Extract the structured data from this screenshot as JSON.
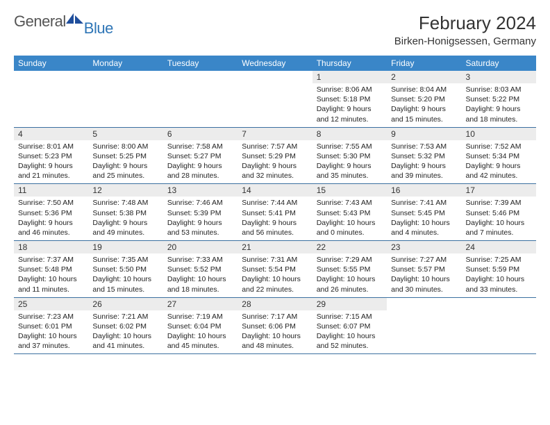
{
  "logo": {
    "general": "General",
    "blue": "Blue"
  },
  "title": {
    "month_year": "February 2024",
    "location": "Birken-Honigsessen, Germany"
  },
  "colors": {
    "header_bar": "#3a86c8",
    "header_text": "#ffffff",
    "daynum_bg": "#ececec",
    "week_divider": "#3a6fa0",
    "logo_general": "#555555",
    "logo_blue": "#2e75b6",
    "text": "#222222",
    "background": "#ffffff"
  },
  "day_names": [
    "Sunday",
    "Monday",
    "Tuesday",
    "Wednesday",
    "Thursday",
    "Friday",
    "Saturday"
  ],
  "weeks": [
    [
      {
        "day": "",
        "sunrise": "",
        "sunset": "",
        "daylight1": "",
        "daylight2": ""
      },
      {
        "day": "",
        "sunrise": "",
        "sunset": "",
        "daylight1": "",
        "daylight2": ""
      },
      {
        "day": "",
        "sunrise": "",
        "sunset": "",
        "daylight1": "",
        "daylight2": ""
      },
      {
        "day": "",
        "sunrise": "",
        "sunset": "",
        "daylight1": "",
        "daylight2": ""
      },
      {
        "day": "1",
        "sunrise": "Sunrise: 8:06 AM",
        "sunset": "Sunset: 5:18 PM",
        "daylight1": "Daylight: 9 hours",
        "daylight2": "and 12 minutes."
      },
      {
        "day": "2",
        "sunrise": "Sunrise: 8:04 AM",
        "sunset": "Sunset: 5:20 PM",
        "daylight1": "Daylight: 9 hours",
        "daylight2": "and 15 minutes."
      },
      {
        "day": "3",
        "sunrise": "Sunrise: 8:03 AM",
        "sunset": "Sunset: 5:22 PM",
        "daylight1": "Daylight: 9 hours",
        "daylight2": "and 18 minutes."
      }
    ],
    [
      {
        "day": "4",
        "sunrise": "Sunrise: 8:01 AM",
        "sunset": "Sunset: 5:23 PM",
        "daylight1": "Daylight: 9 hours",
        "daylight2": "and 21 minutes."
      },
      {
        "day": "5",
        "sunrise": "Sunrise: 8:00 AM",
        "sunset": "Sunset: 5:25 PM",
        "daylight1": "Daylight: 9 hours",
        "daylight2": "and 25 minutes."
      },
      {
        "day": "6",
        "sunrise": "Sunrise: 7:58 AM",
        "sunset": "Sunset: 5:27 PM",
        "daylight1": "Daylight: 9 hours",
        "daylight2": "and 28 minutes."
      },
      {
        "day": "7",
        "sunrise": "Sunrise: 7:57 AM",
        "sunset": "Sunset: 5:29 PM",
        "daylight1": "Daylight: 9 hours",
        "daylight2": "and 32 minutes."
      },
      {
        "day": "8",
        "sunrise": "Sunrise: 7:55 AM",
        "sunset": "Sunset: 5:30 PM",
        "daylight1": "Daylight: 9 hours",
        "daylight2": "and 35 minutes."
      },
      {
        "day": "9",
        "sunrise": "Sunrise: 7:53 AM",
        "sunset": "Sunset: 5:32 PM",
        "daylight1": "Daylight: 9 hours",
        "daylight2": "and 39 minutes."
      },
      {
        "day": "10",
        "sunrise": "Sunrise: 7:52 AM",
        "sunset": "Sunset: 5:34 PM",
        "daylight1": "Daylight: 9 hours",
        "daylight2": "and 42 minutes."
      }
    ],
    [
      {
        "day": "11",
        "sunrise": "Sunrise: 7:50 AM",
        "sunset": "Sunset: 5:36 PM",
        "daylight1": "Daylight: 9 hours",
        "daylight2": "and 46 minutes."
      },
      {
        "day": "12",
        "sunrise": "Sunrise: 7:48 AM",
        "sunset": "Sunset: 5:38 PM",
        "daylight1": "Daylight: 9 hours",
        "daylight2": "and 49 minutes."
      },
      {
        "day": "13",
        "sunrise": "Sunrise: 7:46 AM",
        "sunset": "Sunset: 5:39 PM",
        "daylight1": "Daylight: 9 hours",
        "daylight2": "and 53 minutes."
      },
      {
        "day": "14",
        "sunrise": "Sunrise: 7:44 AM",
        "sunset": "Sunset: 5:41 PM",
        "daylight1": "Daylight: 9 hours",
        "daylight2": "and 56 minutes."
      },
      {
        "day": "15",
        "sunrise": "Sunrise: 7:43 AM",
        "sunset": "Sunset: 5:43 PM",
        "daylight1": "Daylight: 10 hours",
        "daylight2": "and 0 minutes."
      },
      {
        "day": "16",
        "sunrise": "Sunrise: 7:41 AM",
        "sunset": "Sunset: 5:45 PM",
        "daylight1": "Daylight: 10 hours",
        "daylight2": "and 4 minutes."
      },
      {
        "day": "17",
        "sunrise": "Sunrise: 7:39 AM",
        "sunset": "Sunset: 5:46 PM",
        "daylight1": "Daylight: 10 hours",
        "daylight2": "and 7 minutes."
      }
    ],
    [
      {
        "day": "18",
        "sunrise": "Sunrise: 7:37 AM",
        "sunset": "Sunset: 5:48 PM",
        "daylight1": "Daylight: 10 hours",
        "daylight2": "and 11 minutes."
      },
      {
        "day": "19",
        "sunrise": "Sunrise: 7:35 AM",
        "sunset": "Sunset: 5:50 PM",
        "daylight1": "Daylight: 10 hours",
        "daylight2": "and 15 minutes."
      },
      {
        "day": "20",
        "sunrise": "Sunrise: 7:33 AM",
        "sunset": "Sunset: 5:52 PM",
        "daylight1": "Daylight: 10 hours",
        "daylight2": "and 18 minutes."
      },
      {
        "day": "21",
        "sunrise": "Sunrise: 7:31 AM",
        "sunset": "Sunset: 5:54 PM",
        "daylight1": "Daylight: 10 hours",
        "daylight2": "and 22 minutes."
      },
      {
        "day": "22",
        "sunrise": "Sunrise: 7:29 AM",
        "sunset": "Sunset: 5:55 PM",
        "daylight1": "Daylight: 10 hours",
        "daylight2": "and 26 minutes."
      },
      {
        "day": "23",
        "sunrise": "Sunrise: 7:27 AM",
        "sunset": "Sunset: 5:57 PM",
        "daylight1": "Daylight: 10 hours",
        "daylight2": "and 30 minutes."
      },
      {
        "day": "24",
        "sunrise": "Sunrise: 7:25 AM",
        "sunset": "Sunset: 5:59 PM",
        "daylight1": "Daylight: 10 hours",
        "daylight2": "and 33 minutes."
      }
    ],
    [
      {
        "day": "25",
        "sunrise": "Sunrise: 7:23 AM",
        "sunset": "Sunset: 6:01 PM",
        "daylight1": "Daylight: 10 hours",
        "daylight2": "and 37 minutes."
      },
      {
        "day": "26",
        "sunrise": "Sunrise: 7:21 AM",
        "sunset": "Sunset: 6:02 PM",
        "daylight1": "Daylight: 10 hours",
        "daylight2": "and 41 minutes."
      },
      {
        "day": "27",
        "sunrise": "Sunrise: 7:19 AM",
        "sunset": "Sunset: 6:04 PM",
        "daylight1": "Daylight: 10 hours",
        "daylight2": "and 45 minutes."
      },
      {
        "day": "28",
        "sunrise": "Sunrise: 7:17 AM",
        "sunset": "Sunset: 6:06 PM",
        "daylight1": "Daylight: 10 hours",
        "daylight2": "and 48 minutes."
      },
      {
        "day": "29",
        "sunrise": "Sunrise: 7:15 AM",
        "sunset": "Sunset: 6:07 PM",
        "daylight1": "Daylight: 10 hours",
        "daylight2": "and 52 minutes."
      },
      {
        "day": "",
        "sunrise": "",
        "sunset": "",
        "daylight1": "",
        "daylight2": ""
      },
      {
        "day": "",
        "sunrise": "",
        "sunset": "",
        "daylight1": "",
        "daylight2": ""
      }
    ]
  ]
}
